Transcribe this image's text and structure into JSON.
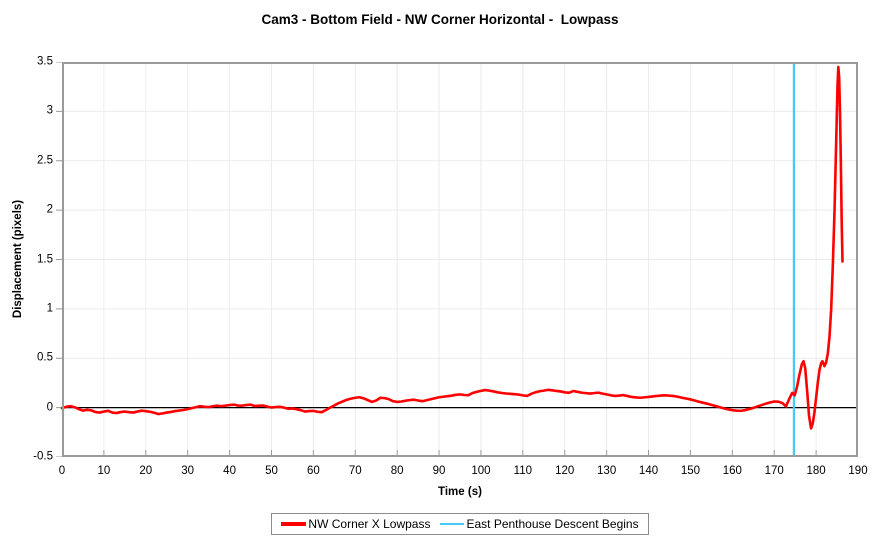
{
  "chart_data": {
    "type": "line",
    "title": "Cam3 - Bottom Field - NW Corner Horizontal -  Lowpass",
    "xlabel": "Time (s)",
    "ylabel": "Displacement (pixels)",
    "xlim": [
      0,
      190
    ],
    "ylim": [
      -0.5,
      3.5
    ],
    "x_ticks": [
      0,
      10,
      20,
      30,
      40,
      50,
      60,
      70,
      80,
      90,
      100,
      110,
      120,
      130,
      140,
      150,
      160,
      170,
      180,
      190
    ],
    "y_ticks": [
      3.5,
      3,
      2.5,
      2,
      1.5,
      1,
      0.5,
      0,
      -0.5
    ],
    "grid": true,
    "legend_position": "bottom",
    "colors": {
      "frame": "#9a9a9a",
      "gridline": "#ececec",
      "tick": "#999999",
      "zero_axis": "#000000"
    },
    "series": [
      {
        "name": "NW Corner X Lowpass",
        "type": "line",
        "color": "#ff0000",
        "points": [
          [
            0,
            -0.005
          ],
          [
            1,
            0.008
          ],
          [
            2,
            0.015
          ],
          [
            3,
            0.004
          ],
          [
            4,
            -0.015
          ],
          [
            5,
            -0.03
          ],
          [
            6,
            -0.022
          ],
          [
            7,
            -0.028
          ],
          [
            8,
            -0.045
          ],
          [
            9,
            -0.05
          ],
          [
            10,
            -0.04
          ],
          [
            11,
            -0.032
          ],
          [
            12,
            -0.05
          ],
          [
            13,
            -0.055
          ],
          [
            14,
            -0.045
          ],
          [
            15,
            -0.04
          ],
          [
            16,
            -0.046
          ],
          [
            17,
            -0.05
          ],
          [
            18,
            -0.04
          ],
          [
            19,
            -0.031
          ],
          [
            20,
            -0.036
          ],
          [
            21,
            -0.042
          ],
          [
            22,
            -0.052
          ],
          [
            23,
            -0.065
          ],
          [
            24,
            -0.058
          ],
          [
            25,
            -0.05
          ],
          [
            26,
            -0.044
          ],
          [
            27,
            -0.035
          ],
          [
            28,
            -0.03
          ],
          [
            29,
            -0.024
          ],
          [
            30,
            -0.015
          ],
          [
            31,
            -0.005
          ],
          [
            32,
            0.005
          ],
          [
            33,
            0.015
          ],
          [
            34,
            0.009
          ],
          [
            35,
            0.005
          ],
          [
            36,
            0.014
          ],
          [
            37,
            0.02
          ],
          [
            38,
            0.015
          ],
          [
            39,
            0.02
          ],
          [
            40,
            0.026
          ],
          [
            41,
            0.03
          ],
          [
            42,
            0.021
          ],
          [
            43,
            0.02
          ],
          [
            44,
            0.026
          ],
          [
            45,
            0.03
          ],
          [
            46,
            0.016
          ],
          [
            47,
            0.02
          ],
          [
            48,
            0.021
          ],
          [
            49,
            0.01
          ],
          [
            50,
            0.001
          ],
          [
            51,
            0.006
          ],
          [
            52,
            0.008
          ],
          [
            53,
            0
          ],
          [
            54,
            -0.012
          ],
          [
            55,
            -0.008
          ],
          [
            56,
            -0.016
          ],
          [
            57,
            -0.026
          ],
          [
            58,
            -0.04
          ],
          [
            59,
            -0.035
          ],
          [
            60,
            -0.033
          ],
          [
            61,
            -0.042
          ],
          [
            62,
            -0.046
          ],
          [
            63,
            -0.024
          ],
          [
            64,
            0
          ],
          [
            65,
            0.022
          ],
          [
            66,
            0.045
          ],
          [
            67,
            0.062
          ],
          [
            68,
            0.08
          ],
          [
            69,
            0.091
          ],
          [
            70,
            0.1
          ],
          [
            71,
            0.105
          ],
          [
            72,
            0.094
          ],
          [
            73,
            0.076
          ],
          [
            74,
            0.058
          ],
          [
            75,
            0.072
          ],
          [
            76,
            0.1
          ],
          [
            77,
            0.096
          ],
          [
            78,
            0.086
          ],
          [
            79,
            0.065
          ],
          [
            80,
            0.058
          ],
          [
            81,
            0.062
          ],
          [
            82,
            0.07
          ],
          [
            83,
            0.076
          ],
          [
            84,
            0.08
          ],
          [
            85,
            0.072
          ],
          [
            86,
            0.065
          ],
          [
            87,
            0.075
          ],
          [
            88,
            0.085
          ],
          [
            89,
            0.095
          ],
          [
            90,
            0.105
          ],
          [
            91,
            0.11
          ],
          [
            92,
            0.116
          ],
          [
            93,
            0.121
          ],
          [
            94,
            0.13
          ],
          [
            95,
            0.134
          ],
          [
            96,
            0.128
          ],
          [
            97,
            0.126
          ],
          [
            98,
            0.148
          ],
          [
            99,
            0.16
          ],
          [
            100,
            0.17
          ],
          [
            101,
            0.178
          ],
          [
            102,
            0.172
          ],
          [
            103,
            0.164
          ],
          [
            104,
            0.155
          ],
          [
            105,
            0.148
          ],
          [
            106,
            0.143
          ],
          [
            107,
            0.14
          ],
          [
            108,
            0.136
          ],
          [
            109,
            0.132
          ],
          [
            110,
            0.124
          ],
          [
            111,
            0.118
          ],
          [
            112,
            0.14
          ],
          [
            113,
            0.155
          ],
          [
            114,
            0.166
          ],
          [
            115,
            0.172
          ],
          [
            116,
            0.18
          ],
          [
            117,
            0.175
          ],
          [
            118,
            0.169
          ],
          [
            119,
            0.164
          ],
          [
            120,
            0.155
          ],
          [
            121,
            0.15
          ],
          [
            122,
            0.168
          ],
          [
            123,
            0.16
          ],
          [
            124,
            0.152
          ],
          [
            125,
            0.147
          ],
          [
            126,
            0.142
          ],
          [
            127,
            0.147
          ],
          [
            128,
            0.152
          ],
          [
            129,
            0.142
          ],
          [
            130,
            0.134
          ],
          [
            131,
            0.125
          ],
          [
            132,
            0.118
          ],
          [
            133,
            0.122
          ],
          [
            134,
            0.127
          ],
          [
            135,
            0.117
          ],
          [
            136,
            0.108
          ],
          [
            137,
            0.103
          ],
          [
            138,
            0.1
          ],
          [
            139,
            0.104
          ],
          [
            140,
            0.108
          ],
          [
            141,
            0.113
          ],
          [
            142,
            0.118
          ],
          [
            143,
            0.122
          ],
          [
            144,
            0.125
          ],
          [
            145,
            0.121
          ],
          [
            146,
            0.117
          ],
          [
            147,
            0.11
          ],
          [
            148,
            0.1
          ],
          [
            149,
            0.092
          ],
          [
            150,
            0.083
          ],
          [
            151,
            0.072
          ],
          [
            152,
            0.06
          ],
          [
            153,
            0.05
          ],
          [
            154,
            0.04
          ],
          [
            155,
            0.028
          ],
          [
            156,
            0.016
          ],
          [
            157,
            0.004
          ],
          [
            158,
            -0.008
          ],
          [
            159,
            -0.018
          ],
          [
            160,
            -0.026
          ],
          [
            161,
            -0.031
          ],
          [
            162,
            -0.033
          ],
          [
            163,
            -0.026
          ],
          [
            164,
            -0.015
          ],
          [
            165,
            -0.003
          ],
          [
            166,
            0.012
          ],
          [
            167,
            0.026
          ],
          [
            168,
            0.04
          ],
          [
            169,
            0.052
          ],
          [
            170,
            0.062
          ],
          [
            171,
            0.06
          ],
          [
            172,
            0.045
          ],
          [
            172.8,
            0.012
          ],
          [
            173.5,
            0.08
          ],
          [
            174.3,
            0.15
          ],
          [
            174.9,
            0.125
          ],
          [
            175.5,
            0.22
          ],
          [
            176,
            0.33
          ],
          [
            176.6,
            0.44
          ],
          [
            177,
            0.47
          ],
          [
            177.4,
            0.4
          ],
          [
            177.9,
            0.15
          ],
          [
            178.3,
            -0.08
          ],
          [
            178.8,
            -0.21
          ],
          [
            179.2,
            -0.16
          ],
          [
            179.6,
            -0.05
          ],
          [
            180,
            0.1
          ],
          [
            180.4,
            0.25
          ],
          [
            180.8,
            0.38
          ],
          [
            181.2,
            0.45
          ],
          [
            181.5,
            0.47
          ],
          [
            182,
            0.42
          ],
          [
            182.4,
            0.46
          ],
          [
            182.8,
            0.55
          ],
          [
            183.2,
            0.72
          ],
          [
            183.6,
            1.0
          ],
          [
            184,
            1.45
          ],
          [
            184.4,
            2.0
          ],
          [
            184.8,
            2.7
          ],
          [
            185.1,
            3.25
          ],
          [
            185.3,
            3.45
          ],
          [
            185.5,
            3.35
          ],
          [
            185.7,
            3.0
          ],
          [
            185.9,
            2.5
          ],
          [
            186.1,
            1.9
          ],
          [
            186.3,
            1.48
          ]
        ]
      },
      {
        "name": "East Penthouse Descent Begins",
        "type": "vline",
        "color": "#44ccf5",
        "x": 174.7
      }
    ]
  }
}
